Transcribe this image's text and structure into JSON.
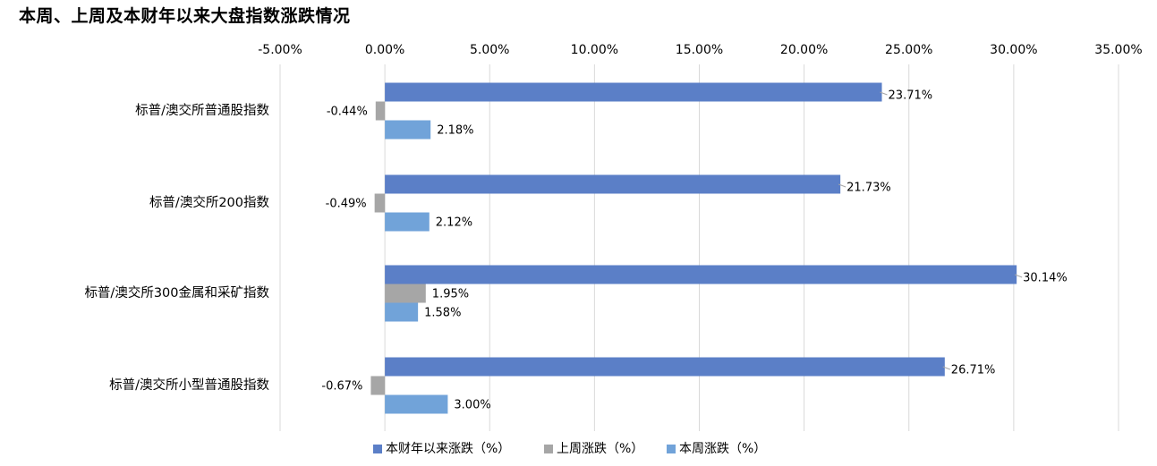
{
  "chart_data": {
    "type": "bar",
    "orientation": "horizontal",
    "title": "本周、上周及本财年以来大盘指数涨跌情况",
    "xlim": [
      -0.05,
      0.35
    ],
    "xticks": [
      "-5.00%",
      "0.00%",
      "5.00%",
      "10.00%",
      "15.00%",
      "20.00%",
      "25.00%",
      "30.00%",
      "35.00%"
    ],
    "xaxis_position": "top",
    "grid": true,
    "legend_position": "bottom",
    "categories": [
      "标普/澳交所普通股指数",
      "标普/澳交所200指数",
      "标普/澳交所300金属和采矿指数",
      "标普/澳交所小型普通股指数"
    ],
    "series": [
      {
        "name": "本财年以来涨跌（%）",
        "color": "#5B7FC7",
        "values": [
          0.2371,
          0.2173,
          0.3014,
          0.2671
        ],
        "labels": [
          "23.71%",
          "21.73%",
          "30.14%",
          "26.71%"
        ]
      },
      {
        "name": "上周涨跌（%）",
        "color": "#A6A6A6",
        "values": [
          -0.0044,
          -0.0049,
          0.0195,
          -0.0067
        ],
        "labels": [
          "-0.44%",
          "-0.49%",
          "1.95%",
          "-0.67%"
        ]
      },
      {
        "name": "本周涨跌（%）",
        "color": "#71A3D9",
        "values": [
          0.0218,
          0.0212,
          0.0158,
          0.03
        ],
        "labels": [
          "2.18%",
          "2.12%",
          "1.58%",
          "3.00%"
        ]
      }
    ]
  }
}
